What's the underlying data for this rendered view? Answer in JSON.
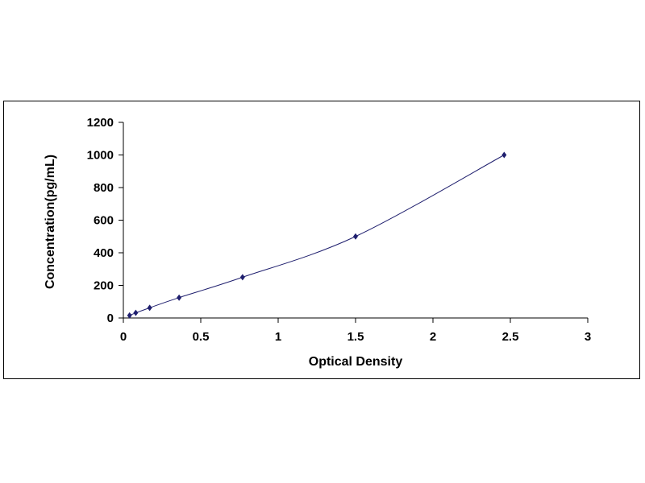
{
  "chart_data": {
    "type": "scatter",
    "title": "",
    "xlabel": "Optical Density",
    "ylabel": "Concentration(pg/mL)",
    "xlim": [
      0,
      3
    ],
    "ylim": [
      0,
      1200
    ],
    "x_ticks": [
      "0",
      "0.5",
      "1",
      "1.5",
      "2",
      "2.5",
      "3"
    ],
    "y_ticks": [
      "0",
      "200",
      "400",
      "600",
      "800",
      "1000",
      "1200"
    ],
    "grid": false,
    "legend": "none",
    "series": [
      {
        "marker": "diamond",
        "line": "smooth",
        "color": "#1f1f6e",
        "x": [
          0.04,
          0.08,
          0.17,
          0.36,
          0.77,
          1.5,
          2.46
        ],
        "y": [
          15.6,
          31.2,
          62.5,
          125,
          250,
          500,
          1000
        ]
      }
    ]
  }
}
